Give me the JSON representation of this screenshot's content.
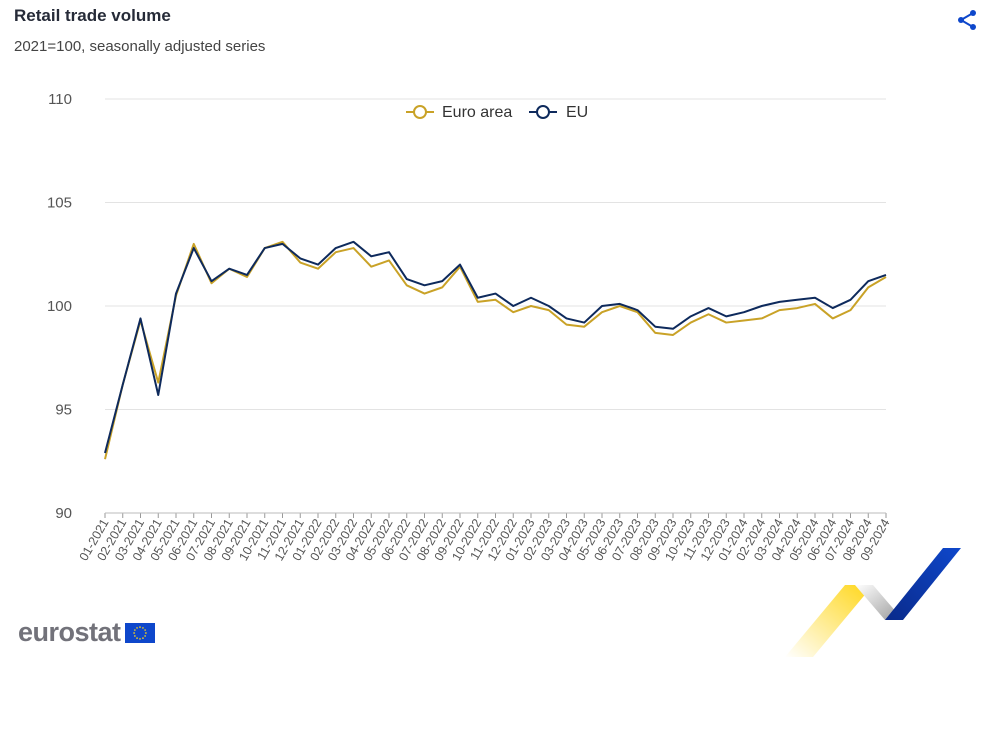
{
  "header": {
    "title": "Retail trade volume",
    "subtitle": "2021=100, seasonally adjusted series"
  },
  "footer": {
    "logo_text": "eurostat"
  },
  "icons": {
    "share": "share-icon"
  },
  "colors": {
    "euro_area": "#c9a227",
    "eu": "#0e2a5c",
    "grid": "#e3e3e3",
    "brand_blue": "#0e47cb",
    "brand_yellow": "#ffd617"
  },
  "chart_data": {
    "type": "line",
    "title": "Retail trade volume",
    "subtitle": "2021=100, seasonally adjusted series",
    "xlabel": "",
    "ylabel": "",
    "ylim": [
      90,
      110
    ],
    "yticks": [
      90,
      95,
      100,
      105,
      110
    ],
    "grid": true,
    "legend_position": "top",
    "x": [
      "01-2021",
      "02-2021",
      "03-2021",
      "04-2021",
      "05-2021",
      "06-2021",
      "07-2021",
      "08-2021",
      "09-2021",
      "10-2021",
      "11-2021",
      "12-2021",
      "01-2022",
      "02-2022",
      "03-2022",
      "04-2022",
      "05-2022",
      "06-2022",
      "07-2022",
      "08-2022",
      "09-2022",
      "10-2022",
      "11-2022",
      "12-2022",
      "01-2023",
      "02-2023",
      "03-2023",
      "04-2023",
      "05-2023",
      "06-2023",
      "07-2023",
      "08-2023",
      "09-2023",
      "10-2023",
      "11-2023",
      "12-2023",
      "01-2024",
      "02-2024",
      "03-2024",
      "04-2024",
      "05-2024",
      "06-2024",
      "07-2024",
      "08-2024",
      "09-2024"
    ],
    "series": [
      {
        "name": "Euro area",
        "color": "#c9a227",
        "values": [
          92.6,
          96.2,
          99.3,
          96.3,
          100.5,
          103.0,
          101.1,
          101.8,
          101.4,
          102.8,
          103.1,
          102.1,
          101.8,
          102.6,
          102.8,
          101.9,
          102.2,
          101.0,
          100.6,
          100.9,
          101.9,
          100.2,
          100.3,
          99.7,
          100.0,
          99.8,
          99.1,
          99.0,
          99.7,
          100.0,
          99.7,
          98.7,
          98.6,
          99.2,
          99.6,
          99.2,
          99.3,
          99.4,
          99.8,
          99.9,
          100.1,
          99.4,
          99.8,
          100.9,
          101.4
        ]
      },
      {
        "name": "EU",
        "color": "#0e2a5c",
        "values": [
          92.9,
          96.2,
          99.4,
          95.7,
          100.6,
          102.8,
          101.2,
          101.8,
          101.5,
          102.8,
          103.0,
          102.3,
          102.0,
          102.8,
          103.1,
          102.4,
          102.6,
          101.3,
          101.0,
          101.2,
          102.0,
          100.4,
          100.6,
          100.0,
          100.4,
          100.0,
          99.4,
          99.2,
          100.0,
          100.1,
          99.8,
          99.0,
          98.9,
          99.5,
          99.9,
          99.5,
          99.7,
          100.0,
          100.2,
          100.3,
          100.4,
          99.9,
          100.3,
          101.2,
          101.5
        ]
      }
    ]
  }
}
